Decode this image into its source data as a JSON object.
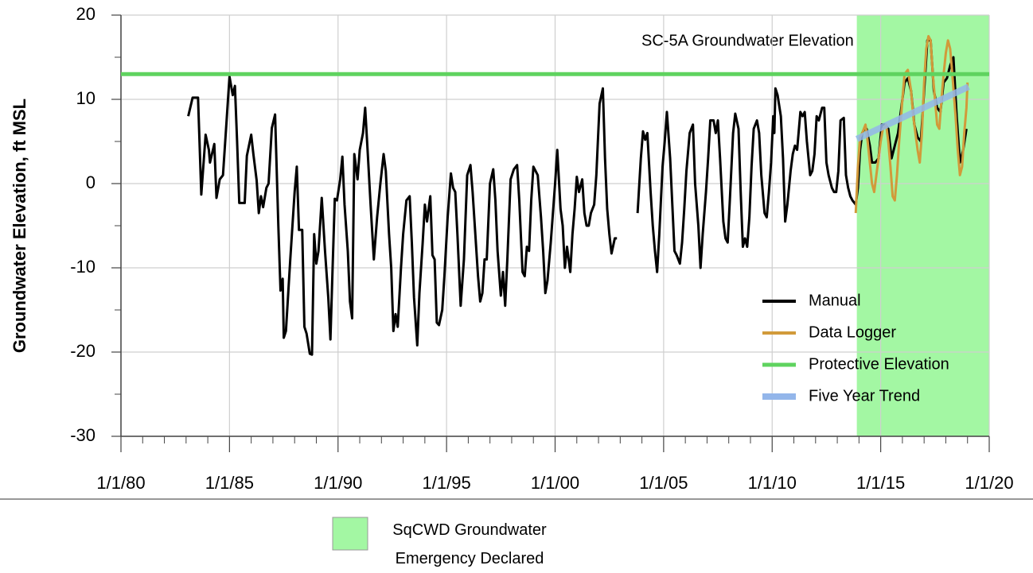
{
  "chart_data": {
    "type": "line",
    "annotation": "SC-5A Groundwater Elevation",
    "y_label": "Groundwater Elevation, ft MSL",
    "xlim": [
      1980,
      2020
    ],
    "ylim": [
      -30,
      20
    ],
    "xticks": [
      {
        "value": 1980,
        "label": "1/1/80"
      },
      {
        "value": 1985,
        "label": "1/1/85"
      },
      {
        "value": 1990,
        "label": "1/1/90"
      },
      {
        "value": 1995,
        "label": "1/1/95"
      },
      {
        "value": 2000,
        "label": "1/1/00"
      },
      {
        "value": 2005,
        "label": "1/1/05"
      },
      {
        "value": 2010,
        "label": "1/1/10"
      },
      {
        "value": 2015,
        "label": "1/1/15"
      },
      {
        "value": 2020,
        "label": "1/1/20"
      }
    ],
    "xminorticks": [
      1981,
      1982,
      1983,
      1984,
      1986,
      1987,
      1988,
      1989,
      1991,
      1992,
      1993,
      1994,
      1996,
      1997,
      1998,
      1999,
      2001,
      2002,
      2003,
      2004,
      2006,
      2007,
      2008,
      2009,
      2011,
      2012,
      2013,
      2014,
      2016,
      2017,
      2018,
      2019
    ],
    "yticks": [
      -30,
      -20,
      -10,
      0,
      10,
      20
    ],
    "yminorticks": [
      -25,
      -15,
      -5,
      5,
      15
    ],
    "grid": true,
    "legend_position": "lower right",
    "shade": {
      "x": [
        2013.9,
        2020
      ],
      "label": "SqCWD Groundwater Emergency Declared",
      "color": "#a3f7a3"
    },
    "series": [
      {
        "name": "Manual",
        "color": "#000000",
        "width": 3,
        "x": [
          1983.1,
          1983.3,
          1983.55,
          1983.7,
          1983.9,
          1984.05,
          1984.1,
          1984.3,
          1984.4,
          1984.55,
          1984.7,
          1985,
          1985.15,
          1985.25,
          1985.35,
          1985.45,
          1985.7,
          1985.8,
          1986,
          1986.1,
          1986.25,
          1986.35,
          1986.45,
          1986.55,
          1986.7,
          1986.8,
          1986.95,
          1987.1,
          1987.25,
          1987.35,
          1987.45,
          1987.5,
          1987.6,
          1987.8,
          1988,
          1988.1,
          1988.2,
          1988.35,
          1988.45,
          1988.55,
          1988.7,
          1988.8,
          1988.9,
          1989,
          1989.1,
          1989.25,
          1989.4,
          1989.55,
          1989.65,
          1989.75,
          1989.85,
          1989.95,
          1990.1,
          1990.2,
          1990.3,
          1990.45,
          1990.55,
          1990.65,
          1990.75,
          1990.9,
          1991,
          1991.15,
          1991.25,
          1991.35,
          1991.5,
          1991.65,
          1991.8,
          1991.95,
          1992.1,
          1992.2,
          1992.35,
          1992.45,
          1992.55,
          1992.65,
          1992.75,
          1992.9,
          1993,
          1993.15,
          1993.3,
          1993.4,
          1993.5,
          1993.65,
          1993.75,
          1993.9,
          1994,
          1994.1,
          1994.25,
          1994.35,
          1994.45,
          1994.55,
          1994.65,
          1994.8,
          1994.9,
          1995.05,
          1995.2,
          1995.3,
          1995.4,
          1995.5,
          1995.65,
          1995.8,
          1995.95,
          1996.1,
          1996.2,
          1996.3,
          1996.45,
          1996.55,
          1996.65,
          1996.75,
          1996.85,
          1997,
          1997.15,
          1997.25,
          1997.35,
          1997.5,
          1997.6,
          1997.7,
          1997.8,
          1997.95,
          1998.1,
          1998.25,
          1998.35,
          1998.5,
          1998.6,
          1998.7,
          1998.8,
          1998.9,
          1999,
          1999.2,
          1999.35,
          1999.45,
          1999.55,
          1999.65,
          1999.8,
          2000,
          2000.1,
          2000.25,
          2000.35,
          2000.45,
          2000.55,
          2000.7,
          2000.8,
          2000.9,
          2001,
          2001.1,
          2001.25,
          2001.35,
          2001.45,
          2001.55,
          2001.65,
          2001.8,
          2001.9,
          2002.05,
          2002.2,
          2002.3,
          2002.4,
          2002.5,
          2002.6,
          2002.75,
          2002.85,
          2003.3,
          2003.8,
          2003.95,
          2004.05,
          2004.15,
          2004.25,
          2004.4,
          2004.5,
          2004.6,
          2004.7,
          2004.8,
          2004.95,
          2005.05,
          2005.15,
          2005.3,
          2005.4,
          2005.5,
          2005.6,
          2005.75,
          2005.85,
          2005.95,
          2006.05,
          2006.2,
          2006.35,
          2006.45,
          2006.6,
          2006.7,
          2006.8,
          2006.95,
          2007.05,
          2007.15,
          2007.3,
          2007.4,
          2007.5,
          2007.6,
          2007.75,
          2007.85,
          2007.95,
          2008.05,
          2008.2,
          2008.3,
          2008.45,
          2008.55,
          2008.65,
          2008.75,
          2008.85,
          2008.95,
          2009.05,
          2009.15,
          2009.3,
          2009.4,
          2009.5,
          2009.65,
          2009.75,
          2009.85,
          2009.95,
          2010.05,
          2010.1,
          2010.15,
          2010.25,
          2010.4,
          2010.5,
          2010.6,
          2010.7,
          2010.85,
          2010.95,
          2011.05,
          2011.15,
          2011.3,
          2011.4,
          2011.5,
          2011.6,
          2011.75,
          2011.85,
          2011.95,
          2012.05,
          2012.15,
          2012.3,
          2012.4,
          2012.5,
          2012.6,
          2012.75,
          2012.85,
          2012.95,
          2013.05,
          2013.15,
          2013.3,
          2013.4,
          2013.5,
          2013.6,
          2013.7,
          2013.85,
          2013.95,
          2014.05,
          2014.15,
          2014.25,
          2014.35,
          2014.5,
          2014.6,
          2014.75,
          2014.9,
          2015.05,
          2015.2,
          2015.35,
          2015.5,
          2015.65,
          2015.8,
          2015.95,
          2016.1,
          2016.25,
          2016.4,
          2016.55,
          2016.7,
          2016.85,
          2017,
          2017.15,
          2017.3,
          2017.45,
          2017.6,
          2017.75,
          2017.9,
          2018.05,
          2018.2,
          2018.35,
          2018.5,
          2018.65,
          2018.8,
          2018.95
        ],
        "values": [
          8,
          10.2,
          10.2,
          -1.3,
          5.8,
          4,
          2.5,
          4.7,
          -1.7,
          0.5,
          1,
          12.7,
          10.5,
          11.6,
          5,
          -2.3,
          -2.3,
          3.3,
          5.8,
          3.5,
          0.4,
          -3.5,
          -1.5,
          -2.8,
          -0.5,
          0,
          6.6,
          8.2,
          -5,
          -12.7,
          -11.3,
          -18.3,
          -17.5,
          -9,
          -1,
          2,
          -5.5,
          -5.5,
          -17,
          -17.8,
          -20.2,
          -20.3,
          -6,
          -9.5,
          -8,
          -1.7,
          -8,
          -13.5,
          -18.5,
          -10,
          -1.8,
          -2,
          0.5,
          3.2,
          -2.5,
          -8,
          -14,
          -16,
          3.5,
          0.5,
          4,
          6,
          9,
          4.5,
          -2.5,
          -9,
          -4,
          0,
          3.5,
          1.5,
          -6,
          -10,
          -17.5,
          -15.5,
          -17,
          -10,
          -6,
          -2,
          -1.5,
          -7,
          -13.5,
          -19.2,
          -13,
          -7,
          -2.5,
          -4.5,
          -1.5,
          -8.5,
          -9,
          -16.5,
          -16.8,
          -15,
          -11,
          -4,
          1.2,
          -0.5,
          -1,
          -6,
          -14.5,
          -9,
          1,
          2.2,
          -1,
          -5,
          -11,
          -14,
          -13,
          -9,
          -9,
          0,
          1.7,
          -2,
          -8,
          -13.3,
          -10.5,
          -14.5,
          -9,
          0.5,
          1.7,
          2.2,
          -2,
          -10.5,
          -11,
          -7.5,
          -8,
          -2,
          2,
          1,
          -4,
          -8,
          -13,
          -11.5,
          -7,
          0,
          4,
          -3,
          -5,
          -10,
          -7.5,
          -10.5,
          -6,
          -3,
          0.8,
          -1,
          0.5,
          -3.5,
          -5,
          -5,
          -3.5,
          -2.5,
          1,
          9.5,
          11.3,
          3,
          -3,
          -6,
          -8.3,
          -6.5,
          -6.5,
          null,
          -3.5,
          3,
          6.2,
          5.2,
          6,
          -1,
          -5,
          -8,
          -10.5,
          -6,
          2,
          5,
          8.5,
          3,
          -2.5,
          -8,
          -8.5,
          -9.5,
          -7,
          -3,
          1.5,
          6,
          7,
          0,
          -5,
          -10,
          -6,
          -1,
          3,
          7.5,
          7.5,
          6,
          7.5,
          3,
          -4.5,
          -6.5,
          -7,
          -2,
          6,
          8.3,
          6.5,
          -1,
          -7.5,
          -6.5,
          -7.5,
          -4,
          2,
          6.5,
          7.5,
          6,
          1,
          -3.5,
          -4,
          -1,
          2.5,
          8,
          6,
          11.3,
          10.5,
          8,
          3,
          -4.5,
          -2.5,
          1.5,
          3.5,
          4.5,
          4,
          8.5,
          8,
          8.5,
          5,
          1,
          1.5,
          3.5,
          8,
          7.5,
          9,
          9,
          2.5,
          1,
          -0.5,
          -1,
          -1,
          1.5,
          7.5,
          7.8,
          1,
          -0.5,
          -1.5,
          -2,
          -2.5,
          -0.5,
          4,
          6,
          6.5,
          6.5,
          4.5,
          2.5,
          2.5,
          3,
          7,
          7,
          6.5,
          3,
          4.5,
          6,
          9,
          12,
          12.5,
          11,
          7,
          5.5,
          5,
          11,
          17,
          17,
          11,
          9,
          8.5,
          12,
          12.5,
          14,
          15,
          8,
          2.5,
          4,
          6.5
        ]
      },
      {
        "name": "Data Logger",
        "color": "#d19a3a",
        "width": 3,
        "x": [
          2013.85,
          2013.95,
          2014.05,
          2014.15,
          2014.3,
          2014.4,
          2014.5,
          2014.6,
          2014.7,
          2014.8,
          2014.9,
          2015,
          2015.1,
          2015.25,
          2015.35,
          2015.45,
          2015.55,
          2015.65,
          2015.75,
          2015.85,
          2016,
          2016.1,
          2016.25,
          2016.4,
          2016.5,
          2016.6,
          2016.7,
          2016.8,
          2016.9,
          2017,
          2017.1,
          2017.2,
          2017.3,
          2017.4,
          2017.5,
          2017.6,
          2017.7,
          2017.8,
          2017.9,
          2018,
          2018.1,
          2018.2,
          2018.3,
          2018.45,
          2018.55,
          2018.65,
          2018.75,
          2018.85,
          2018.95,
          2019
        ],
        "values": [
          -3.5,
          2,
          5.5,
          6,
          7,
          5,
          2.5,
          0,
          -1,
          1,
          3,
          5,
          6.5,
          7,
          5,
          2,
          -1.5,
          -2,
          1,
          5,
          10,
          13,
          13.5,
          11,
          8,
          6,
          4,
          2.5,
          6,
          12,
          16,
          17.5,
          17,
          13,
          10,
          7,
          6.5,
          10,
          13,
          15.5,
          17,
          16,
          13,
          8,
          4,
          1,
          2,
          6,
          9,
          12
        ]
      },
      {
        "name": "Protective Elevation",
        "color": "#5fd35f",
        "width": 5,
        "x": [
          1980,
          2020
        ],
        "values": [
          13,
          13
        ]
      },
      {
        "name": "Five Year Trend",
        "color": "#93b6ea",
        "width": 8,
        "x": [
          2013.9,
          2019.05
        ],
        "values": [
          5.3,
          11.5
        ]
      }
    ]
  }
}
